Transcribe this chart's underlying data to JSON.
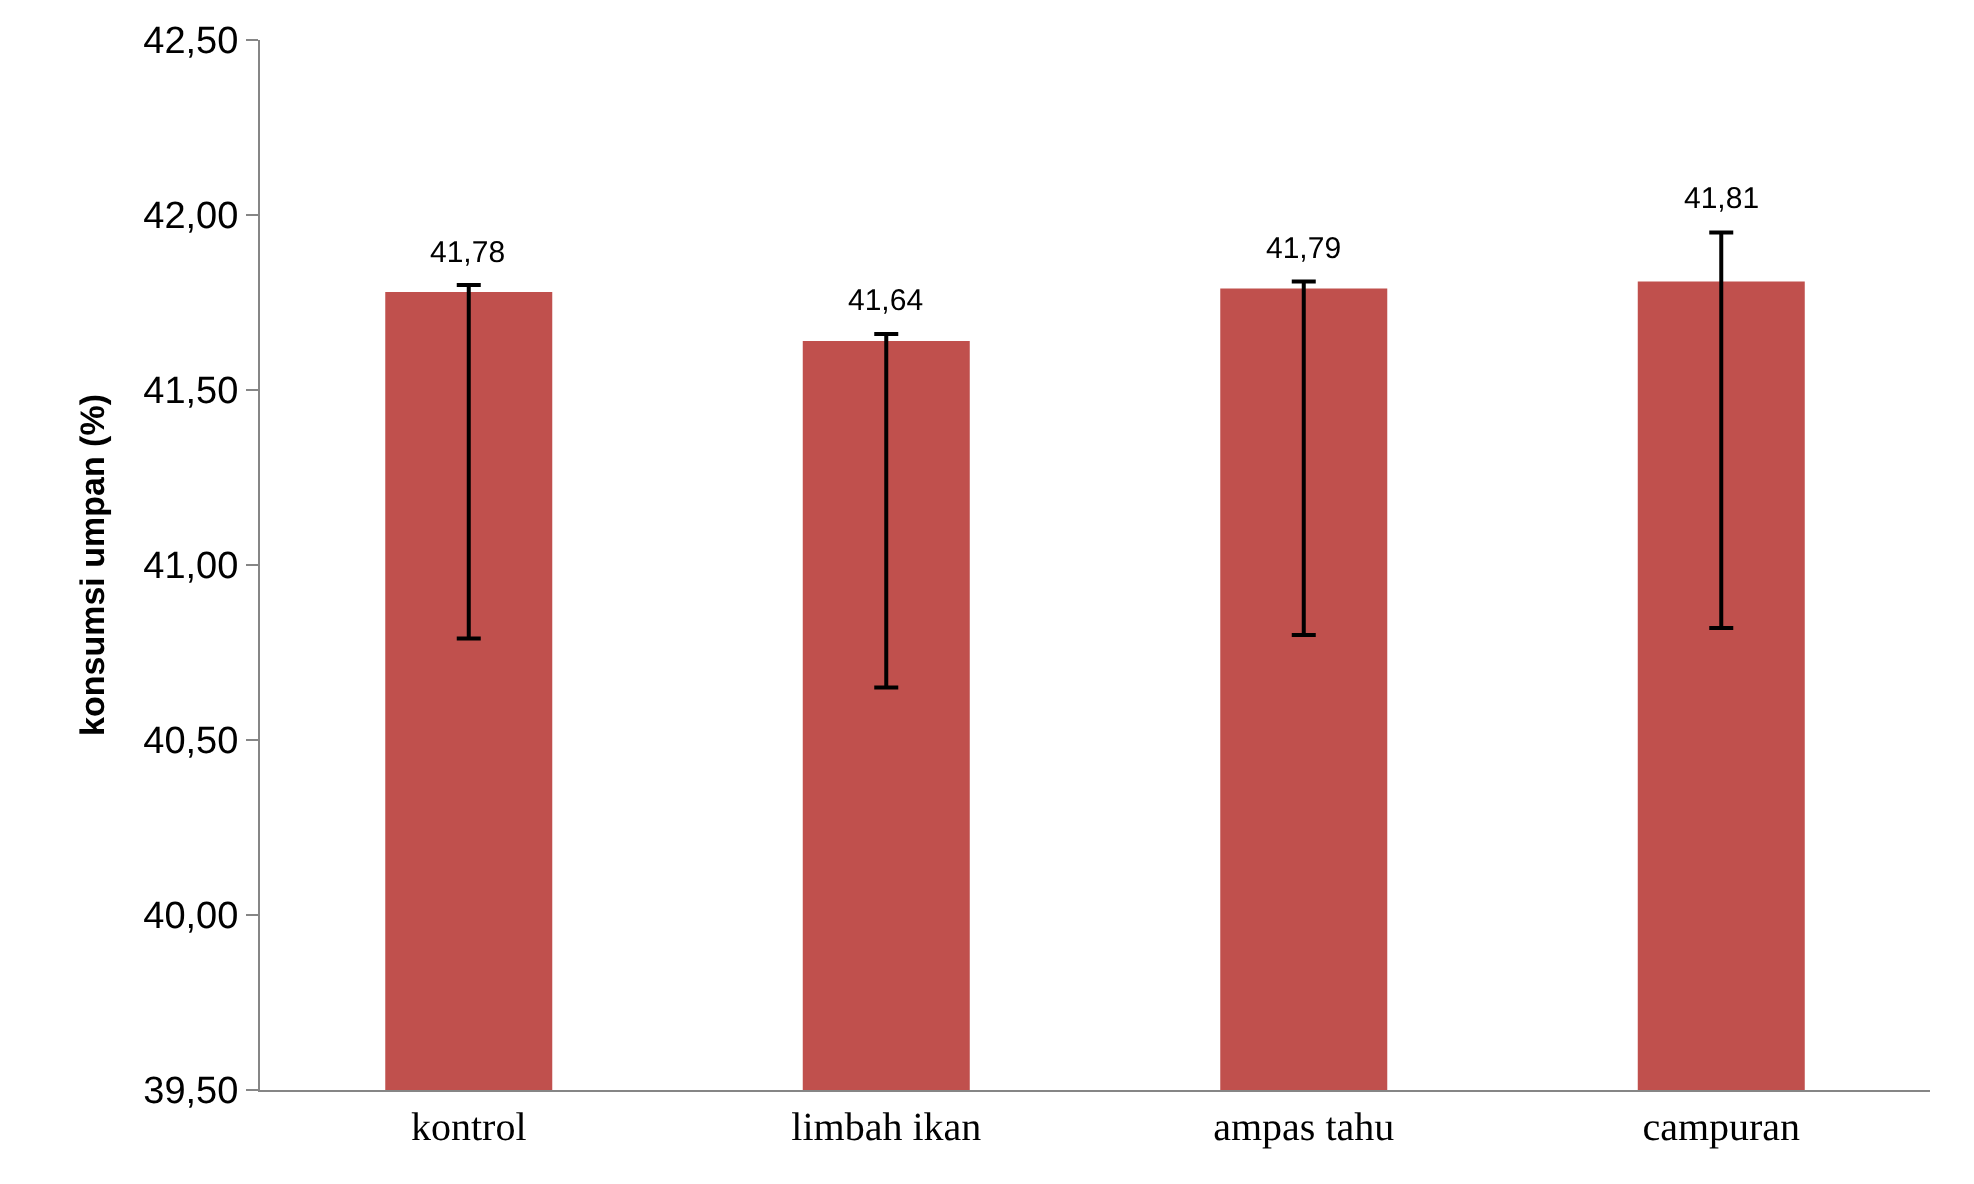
{
  "chart_data": {
    "type": "bar",
    "ylabel": "konsumsi umpan (%)",
    "categories": [
      "kontrol",
      "limbah ikan",
      "ampas tahu",
      "campuran"
    ],
    "values": [
      41.78,
      41.64,
      41.79,
      41.81
    ],
    "value_labels": [
      "41,78",
      "41,64",
      "41,79",
      "41,81"
    ],
    "errors": [
      [
        40.79,
        41.8
      ],
      [
        40.65,
        41.66
      ],
      [
        40.8,
        41.81
      ],
      [
        40.82,
        41.95
      ]
    ],
    "color": "#c0504d",
    "ylim": [
      39.5,
      42.5
    ],
    "yticks": [
      {
        "value": 39.5,
        "label": "39,50"
      },
      {
        "value": 40,
        "label": "40,00"
      },
      {
        "value": 40.5,
        "label": "40,50"
      },
      {
        "value": 41,
        "label": "41,00"
      },
      {
        "value": 41.5,
        "label": "41,50"
      },
      {
        "value": 42,
        "label": "42,00"
      },
      {
        "value": 42.5,
        "label": "42,50"
      }
    ],
    "grid": false,
    "legend": false
  }
}
